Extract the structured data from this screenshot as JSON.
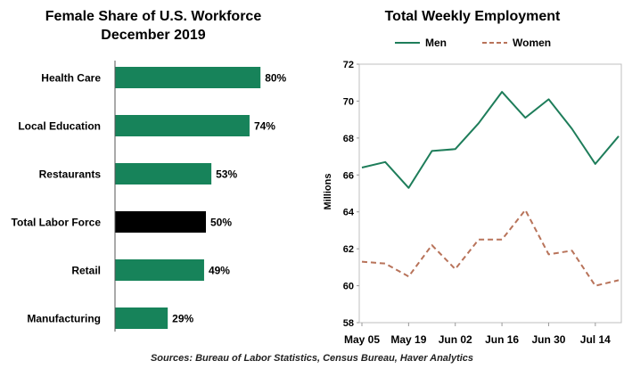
{
  "chart_data": [
    {
      "type": "bar",
      "orientation": "horizontal",
      "title": "Female Share of U.S. Workforce",
      "subtitle": "December 2019",
      "categories": [
        "Health Care",
        "Local Education",
        "Restaurants",
        "Total Labor Force",
        "Retail",
        "Manufacturing"
      ],
      "values": [
        80,
        74,
        53,
        50,
        49,
        29
      ],
      "value_labels": [
        "80%",
        "74%",
        "53%",
        "50%",
        "49%",
        "29%"
      ],
      "xlim": [
        0,
        100
      ],
      "grid": false,
      "colors": {
        "default": "#17835a",
        "highlight": "#000000"
      },
      "highlight_category": "Total Labor Force"
    },
    {
      "type": "line",
      "title": "Total Weekly Employment",
      "ylabel": "Millions",
      "ylim": [
        58,
        72
      ],
      "yticks": [
        58,
        60,
        62,
        64,
        66,
        68,
        70,
        72
      ],
      "x": [
        "May 05",
        "May 12",
        "May 19",
        "May 26",
        "Jun 02",
        "Jun 09",
        "Jun 16",
        "Jun 23",
        "Jun 30",
        "Jul 07",
        "Jul 14",
        "Jul 21"
      ],
      "xtick_labels": [
        "May 05",
        "May 19",
        "Jun 02",
        "Jun 16",
        "Jun 30",
        "Jul 14"
      ],
      "legend": "top",
      "series": [
        {
          "name": "Men",
          "color": "#1e7d5a",
          "style": "solid",
          "values": [
            66.4,
            66.7,
            65.3,
            67.3,
            67.4,
            68.8,
            70.5,
            69.1,
            70.1,
            68.5,
            66.6,
            68.1
          ]
        },
        {
          "name": "Women",
          "color": "#b8735a",
          "style": "dashed",
          "values": [
            61.3,
            61.2,
            60.5,
            62.2,
            60.9,
            62.5,
            62.5,
            64.1,
            61.7,
            61.9,
            60.0,
            60.3
          ]
        }
      ]
    }
  ],
  "source": "Sources: Bureau of Labor Statistics, Census Bureau, Haver Analytics"
}
